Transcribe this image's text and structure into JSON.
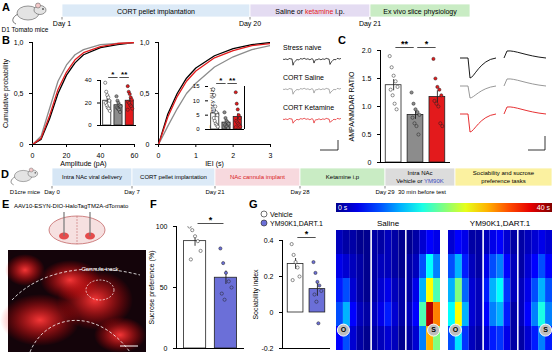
{
  "panel_labels": [
    "A",
    "B",
    "C",
    "D",
    "E",
    "F",
    "G"
  ],
  "timeline_a": {
    "mouse": "D1 Tomato mice",
    "days": [
      "Day 1",
      "Day 20",
      "Day 21"
    ],
    "boxes": [
      {
        "color": "#dceaf7",
        "lines": [
          [
            {
              "text": "CORT pellet implantation"
            }
          ]
        ]
      },
      {
        "color": "#e4dcf2",
        "lines": [
          [
            {
              "text": "Saline or "
            },
            {
              "text": "ketamine",
              "color": "#e31a1c"
            },
            {
              "text": " i.p."
            }
          ]
        ]
      },
      {
        "color": "#c9ecc4",
        "lines": [
          [
            {
              "text": "Ex vivo slice physiology"
            }
          ]
        ]
      }
    ]
  },
  "timeline_d": {
    "mouse": "D1cre mice",
    "days": [
      "Day 0",
      "Day 7",
      "Day 21",
      "Day 28",
      "Day 29"
    ],
    "note": "30 min before test",
    "boxes": [
      {
        "color": "#d6e6f5",
        "lines": [
          [
            {
              "text": "Intra NAc viral delivery"
            }
          ]
        ]
      },
      {
        "color": "#dceaf7",
        "lines": [
          [
            {
              "text": "CORT pellet implantation"
            }
          ]
        ]
      },
      {
        "color": "#f7d9de",
        "lines": [
          [
            {
              "text": "NAc cannula implant",
              "color": "#d7191c"
            }
          ]
        ]
      },
      {
        "color": "#c9ecc4",
        "lines": [
          [
            {
              "text": "Ketamine i.p"
            }
          ]
        ]
      },
      {
        "color": "#dcdcdc",
        "lines": [
          [
            {
              "text": "Intra NAc"
            }
          ],
          [
            {
              "text": "Vehicle or "
            },
            {
              "text": "YM90K",
              "color": "#3b4cc0"
            }
          ]
        ]
      },
      {
        "color": "#fbf1a0",
        "lines": [
          [
            {
              "text": "Sociability and sucrose"
            }
          ],
          [
            {
              "text": "preference tasks"
            }
          ]
        ]
      }
    ]
  },
  "histology": {
    "vector": "AAV10-ESYN-DIO-HaloTagTM2A-dTomato",
    "annotation": "Cannula track"
  },
  "chart_data": [
    {
      "type": "line",
      "x_label": "Amplitude (pA)",
      "y_label": "Cumulative probability",
      "x": [
        0,
        5,
        10,
        15,
        20,
        25,
        30,
        40,
        50,
        60
      ],
      "series": [
        {
          "name": "Stress naive",
          "color": "#000000",
          "values": [
            0,
            0.05,
            0.25,
            0.5,
            0.68,
            0.8,
            0.88,
            0.95,
            0.98,
            1
          ]
        },
        {
          "name": "CORT Saline",
          "color": "#8c8c8c",
          "values": [
            0,
            0.08,
            0.35,
            0.62,
            0.78,
            0.88,
            0.93,
            0.98,
            0.99,
            1
          ]
        },
        {
          "name": "CORT Ketamine",
          "color": "#e31a1c",
          "values": [
            0,
            0.06,
            0.28,
            0.54,
            0.71,
            0.83,
            0.9,
            0.96,
            0.99,
            1
          ]
        }
      ],
      "xlim": [
        0,
        60
      ],
      "xticks": [
        0,
        20,
        40,
        60
      ],
      "ylim": [
        0,
        1
      ],
      "yticks": [
        0,
        {
          "value": 0.5,
          "label": "0,5"
        },
        {
          "value": 1,
          "label": "1,0"
        }
      ],
      "legend": "right"
    },
    {
      "type": "bar",
      "categories": [
        null,
        null,
        null
      ],
      "values": [
        22,
        18,
        22
      ],
      "errors": [
        2.4,
        1.4,
        2
      ],
      "points": [
        [
          38,
          30,
          27,
          25,
          22,
          20,
          18,
          16,
          15,
          13
        ],
        [
          26,
          22,
          20,
          18,
          17,
          16,
          15,
          14,
          12
        ],
        [
          35,
          30,
          28,
          25,
          23,
          21,
          20,
          18,
          17,
          15,
          14
        ]
      ],
      "colors": [
        "#ffffff",
        "#8c8c8c",
        "#e31a1c"
      ],
      "ylim": [
        0,
        40
      ],
      "yticks": [
        0,
        20,
        40
      ],
      "tick_labels": "y",
      "significance": [
        {
          "between": [
            0,
            1
          ],
          "label": "*"
        },
        {
          "between": [
            1,
            2
          ],
          "label": "**"
        }
      ]
    },
    {
      "type": "line",
      "x_label": "IEI (s)",
      "x": [
        0,
        0.25,
        0.5,
        0.75,
        1,
        1.5,
        2,
        2.5,
        3
      ],
      "series": [
        {
          "color": "#000000",
          "values": [
            0,
            0.3,
            0.5,
            0.65,
            0.75,
            0.87,
            0.94,
            0.98,
            1
          ]
        },
        {
          "color": "#8c8c8c",
          "values": [
            0,
            0.18,
            0.35,
            0.5,
            0.6,
            0.76,
            0.86,
            0.93,
            0.97
          ]
        },
        {
          "color": "#e31a1c",
          "values": [
            0,
            0.27,
            0.47,
            0.62,
            0.72,
            0.85,
            0.92,
            0.97,
            0.99
          ]
        }
      ],
      "xlim": [
        0,
        3
      ],
      "xticks": [
        0,
        1,
        2,
        3
      ],
      "ylim": [
        0,
        1
      ],
      "yticks": [
        0,
        {
          "value": 0.5,
          "label": "0,5"
        },
        {
          "value": 1,
          "label": "1,0"
        }
      ]
    },
    {
      "type": "bar",
      "y_label": "Frequency (Hz)",
      "categories": [
        null,
        null,
        null
      ],
      "values": [
        5.6,
        2.4,
        4.4
      ],
      "errors": [
        1.4,
        0.6,
        1.1
      ],
      "points": [
        [
          14,
          12,
          8,
          6,
          5,
          4,
          3,
          2,
          1.5,
          1
        ],
        [
          6,
          4,
          3,
          2.5,
          2,
          1.5,
          1,
          1,
          0.5
        ],
        [
          13,
          9,
          7,
          5,
          4,
          3,
          2.5,
          2,
          1.5,
          1,
          0.8
        ]
      ],
      "colors": [
        "#ffffff",
        "#8c8c8c",
        "#e31a1c"
      ],
      "ylim": [
        0,
        15
      ],
      "yticks": [
        0,
        5,
        10,
        15
      ],
      "tick_labels": "y",
      "significance": [
        {
          "between": [
            0,
            1
          ],
          "label": "*"
        },
        {
          "between": [
            1,
            2
          ],
          "label": "**"
        }
      ]
    },
    {
      "type": "bar",
      "y_label": "AMPA/NMDAR RATIO",
      "categories": [
        null,
        null,
        null
      ],
      "values": [
        1.38,
        0.85,
        1.17
      ],
      "errors": [
        0.1,
        0.08,
        0.11
      ],
      "points": [
        [
          1.9,
          1.7,
          1.55,
          1.45,
          1.35,
          1.3,
          1.2,
          1.05,
          0.95
        ],
        [
          1.25,
          1.05,
          0.95,
          0.9,
          0.85,
          0.8,
          0.7,
          0.65,
          0.5
        ],
        [
          1.85,
          1.5,
          1.35,
          1.3,
          1.2,
          1.1,
          1.05,
          1.0,
          0.7,
          0.65
        ]
      ],
      "colors": [
        "#ffffff",
        "#8c8c8c",
        "#e31a1c"
      ],
      "ylim": [
        0,
        2
      ],
      "yticks": [
        0,
        0.5,
        {
          "value": 1,
          "label": "1.0"
        },
        1.5,
        {
          "value": 2,
          "label": "2.0"
        }
      ],
      "tick_labels": "y",
      "significance": [
        {
          "between": [
            0,
            1
          ],
          "label": "**"
        },
        {
          "between": [
            1,
            2
          ],
          "label": "*"
        }
      ]
    },
    {
      "type": "bar",
      "y_label": "Sucrose preference (%)",
      "categories": [
        null,
        null
      ],
      "values": [
        88,
        58
      ],
      "errors": [
        4.2,
        5.5
      ],
      "points": [
        [
          100,
          97,
          92,
          88,
          80,
          73
        ],
        [
          82,
          70,
          62,
          55,
          50,
          45,
          40
        ]
      ],
      "colors": [
        "#ffffff",
        "#6b6fd8"
      ],
      "ylim": [
        0,
        100
      ],
      "yticks": [
        0,
        50,
        100
      ],
      "tick_labels": "y",
      "significance": [
        {
          "between": [
            0,
            1
          ],
          "label": "*"
        }
      ]
    },
    {
      "type": "bar",
      "y_label": "Sociability index",
      "categories": [
        null
      ],
      "series": [
        {
          "name": "Vehicle",
          "color": "#ffffff",
          "values": [
            0.27
          ],
          "errors": [
            0.03
          ],
          "points": [
            [
              0.38,
              0.32,
              0.28,
              0.25,
              0.2,
              0.18
            ]
          ]
        },
        {
          "name": "YM90K1,DART.1",
          "color": "#6b6fd8",
          "values": [
            0.13
          ],
          "errors": [
            0.04
          ],
          "points": [
            [
              0.28,
              0.22,
              0.17,
              0.15,
              0.12,
              0.1,
              0.06,
              -0.06
            ]
          ]
        }
      ],
      "ylim": [
        -0.2,
        0.4
      ],
      "yticks": [
        {
          "value": -0.2,
          "label": "-0.2"
        },
        0,
        0.2,
        0.4
      ],
      "tick_labels": "y",
      "legend": "top",
      "significance": [
        {
          "between": [
            0,
            1
          ],
          "label": "*"
        }
      ]
    },
    {
      "type": "heatmap",
      "title": "Saline",
      "colorbar_range": [
        0,
        40
      ],
      "colorbar_ticks": [
        {
          "value": 0,
          "label": "0 s"
        },
        {
          "value": 40,
          "label": "40 s"
        }
      ],
      "annotations": [
        "O",
        "S"
      ],
      "cells": [
        [
          2,
          1,
          1,
          0,
          0,
          1,
          1,
          2,
          1,
          0,
          0,
          1,
          3,
          5,
          4
        ],
        [
          4,
          3,
          2,
          1,
          0,
          1,
          2,
          2,
          1,
          0,
          1,
          2,
          8,
          15,
          10
        ],
        [
          6,
          8,
          3,
          1,
          0,
          1,
          3,
          4,
          2,
          1,
          1,
          4,
          12,
          25,
          18
        ],
        [
          8,
          12,
          5,
          2,
          1,
          2,
          4,
          6,
          3,
          1,
          2,
          5,
          18,
          38,
          30
        ],
        [
          5,
          8,
          3,
          1,
          0,
          1,
          2,
          3,
          2,
          0,
          1,
          3,
          10,
          28,
          20
        ]
      ]
    },
    {
      "type": "heatmap",
      "title": "YM90K1,DART.1",
      "colorbar_range": [
        0,
        40
      ],
      "annotations": [
        "O",
        "S"
      ],
      "cells": [
        [
          3,
          5,
          4,
          1,
          1,
          2,
          4,
          5,
          3,
          1,
          1,
          2,
          3,
          4,
          3
        ],
        [
          8,
          12,
          6,
          2,
          1,
          4,
          8,
          10,
          5,
          2,
          1,
          3,
          5,
          8,
          5
        ],
        [
          12,
          20,
          9,
          3,
          2,
          6,
          12,
          15,
          7,
          2,
          2,
          4,
          8,
          12,
          8
        ],
        [
          15,
          25,
          12,
          3,
          2,
          5,
          10,
          12,
          6,
          1,
          2,
          5,
          10,
          16,
          10
        ],
        [
          8,
          14,
          7,
          2,
          1,
          3,
          6,
          7,
          4,
          1,
          1,
          3,
          6,
          10,
          6
        ]
      ]
    }
  ]
}
